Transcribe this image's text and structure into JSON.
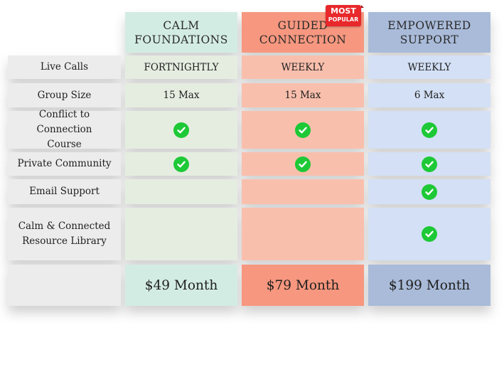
{
  "plans": [
    {
      "name_line1": "CALM",
      "name_line2": "FOUNDATIONS",
      "price": "$49 Month"
    },
    {
      "name_line1": "GUIDED",
      "name_line2": "CONNECTION",
      "price": "$79 Month"
    },
    {
      "name_line1": "EMPOWERED",
      "name_line2": "SUPPORT",
      "price": "$199 Month"
    }
  ],
  "badge": {
    "line1": "MOST",
    "line2": "POPULAR"
  },
  "rows": [
    {
      "label": "Live Calls",
      "values": [
        "FORTNIGHTLY",
        "WEEKLY",
        "WEEKLY"
      ]
    },
    {
      "label": "Group Size",
      "values": [
        "15 Max",
        "15 Max",
        "6 Max"
      ]
    },
    {
      "label_line1": "Conflict to Connection",
      "label_line2": "Course",
      "checks": [
        true,
        true,
        true
      ]
    },
    {
      "label": "Private Community",
      "checks": [
        true,
        true,
        true
      ]
    },
    {
      "label": "Email Support",
      "checks": [
        false,
        false,
        true
      ]
    },
    {
      "label_line1": "Calm & Connected",
      "label_line2": "Resource Library",
      "checks": [
        false,
        false,
        true
      ]
    }
  ],
  "colors": {
    "col1_header": "#d3ece3",
    "col1_body": "#e5ede1",
    "col2_header": "#f7977f",
    "col2_body": "#f9bfad",
    "col3_header": "#a9bbd9",
    "col3_body": "#d3e0f5",
    "label_bg": "#ececec",
    "check": "#1dc936",
    "badge": "#e8282b"
  },
  "icons": {
    "included": "check-circle-icon"
  }
}
